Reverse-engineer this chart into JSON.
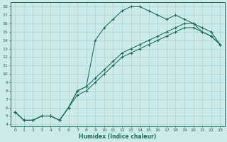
{
  "xlabel": "Humidex (Indice chaleur)",
  "xlim": [
    -0.5,
    23.5
  ],
  "ylim": [
    3.8,
    18.5
  ],
  "xticks": [
    0,
    1,
    2,
    3,
    4,
    5,
    6,
    7,
    8,
    9,
    10,
    11,
    12,
    13,
    14,
    15,
    16,
    17,
    18,
    19,
    20,
    21,
    22,
    23
  ],
  "yticks": [
    4,
    5,
    6,
    7,
    8,
    9,
    10,
    11,
    12,
    13,
    14,
    15,
    16,
    17,
    18
  ],
  "line_color": "#1a6b5a",
  "bg_color": "#cdeaea",
  "grid_color": "#a8d5d5",
  "line1_x": [
    0,
    1,
    2,
    3,
    4,
    5,
    6,
    7,
    8,
    9,
    10,
    11,
    12,
    13,
    14,
    15,
    16,
    17,
    18,
    19,
    20,
    21,
    22,
    23
  ],
  "line1_y": [
    5.5,
    4.5,
    4.5,
    5.0,
    5.0,
    4.5,
    6.0,
    8.0,
    8.5,
    14.0,
    15.5,
    16.5,
    17.5,
    18.0,
    18.0,
    17.5,
    17.0,
    16.5,
    17.0,
    16.5,
    16.0,
    15.0,
    14.5,
    13.5
  ],
  "line2_x": [
    0,
    1,
    2,
    3,
    4,
    5,
    6,
    7,
    8,
    9,
    10,
    11,
    12,
    13,
    14,
    15,
    16,
    17,
    18,
    19,
    20,
    21,
    22,
    23
  ],
  "line2_y": [
    5.5,
    4.5,
    4.5,
    5.0,
    5.0,
    4.5,
    6.0,
    8.0,
    8.5,
    9.5,
    10.5,
    11.5,
    12.5,
    13.0,
    13.5,
    14.0,
    14.5,
    15.0,
    15.5,
    16.0,
    16.0,
    15.5,
    15.0,
    13.5
  ],
  "line3_x": [
    0,
    1,
    2,
    3,
    4,
    5,
    6,
    7,
    8,
    9,
    10,
    11,
    12,
    13,
    14,
    15,
    16,
    17,
    18,
    19,
    20,
    21,
    22,
    23
  ],
  "line3_y": [
    5.5,
    4.5,
    4.5,
    5.0,
    5.0,
    4.5,
    6.0,
    7.5,
    8.0,
    9.0,
    10.0,
    11.0,
    12.0,
    12.5,
    13.0,
    13.5,
    14.0,
    14.5,
    15.0,
    15.5,
    15.5,
    15.0,
    14.5,
    13.5
  ]
}
